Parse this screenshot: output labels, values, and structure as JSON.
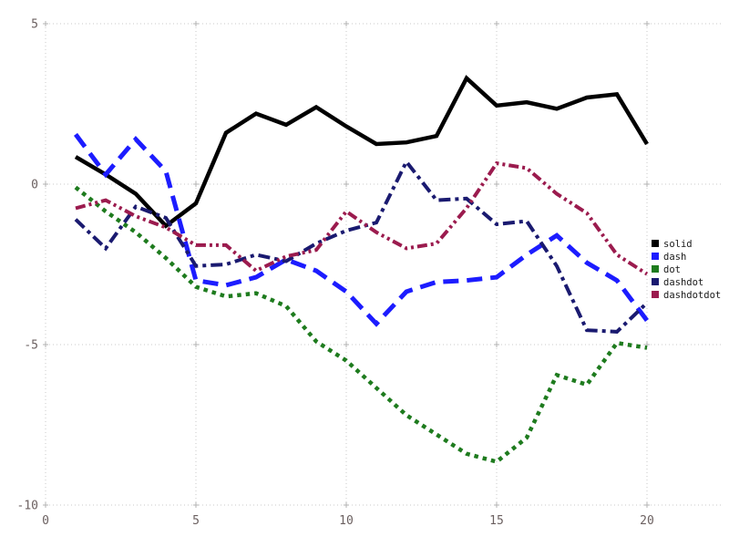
{
  "chart_data": {
    "type": "line",
    "title": "",
    "xlabel": "",
    "ylabel": "",
    "x": [
      1,
      2,
      3,
      4,
      5,
      6,
      7,
      8,
      9,
      10,
      11,
      12,
      13,
      14,
      15,
      16,
      17,
      18,
      19,
      20
    ],
    "series": [
      {
        "name": "solid",
        "color": "#000000",
        "style": "solid",
        "values": [
          0.85,
          0.3,
          -0.3,
          -1.3,
          -0.6,
          1.6,
          2.2,
          1.85,
          2.4,
          1.8,
          1.25,
          1.3,
          1.5,
          3.3,
          2.45,
          2.55,
          2.35,
          2.7,
          2.8,
          1.25
        ]
      },
      {
        "name": "dash",
        "color": "#1c1cff",
        "style": "dash",
        "values": [
          1.55,
          0.3,
          1.4,
          0.4,
          -3.0,
          -3.15,
          -2.9,
          -2.35,
          -2.7,
          -3.35,
          -4.35,
          -3.35,
          -3.05,
          -3.0,
          -2.9,
          -2.2,
          -1.6,
          -2.45,
          -3.0,
          -4.25
        ]
      },
      {
        "name": "dot",
        "color": "#1e7b1e",
        "style": "dot",
        "values": [
          -0.1,
          -0.85,
          -1.5,
          -2.3,
          -3.2,
          -3.5,
          -3.4,
          -3.8,
          -4.9,
          -5.5,
          -6.35,
          -7.2,
          -7.8,
          -8.4,
          -8.65,
          -7.9,
          -5.95,
          -6.25,
          -4.95,
          -5.1
        ]
      },
      {
        "name": "dashdot",
        "color": "#1a1a70",
        "style": "dashdot",
        "values": [
          -1.1,
          -2.0,
          -0.7,
          -1.05,
          -2.55,
          -2.5,
          -2.2,
          -2.4,
          -1.85,
          -1.45,
          -1.2,
          0.7,
          -0.5,
          -0.45,
          -1.25,
          -1.15,
          -2.55,
          -4.55,
          -4.6,
          -3.7
        ]
      },
      {
        "name": "dashdotdot",
        "color": "#9b1b4e",
        "style": "dashdotdot",
        "values": [
          -0.75,
          -0.5,
          -1.0,
          -1.35,
          -1.9,
          -1.9,
          -2.7,
          -2.25,
          -2.05,
          -0.85,
          -1.5,
          -2.0,
          -1.85,
          -0.75,
          0.65,
          0.5,
          -0.3,
          -0.9,
          -2.2,
          -2.8
        ]
      }
    ],
    "xticks": {
      "values": [
        0,
        5,
        10,
        15,
        20
      ],
      "labels": [
        "0",
        "5",
        "10",
        "15",
        "20"
      ]
    },
    "yticks": {
      "values": [
        -10,
        -5,
        0,
        5
      ],
      "labels": [
        "-10",
        "-5",
        "0",
        "5"
      ]
    },
    "xlim": [
      0,
      20.6
    ],
    "ylim": [
      -10.3,
      5.1
    ],
    "grid": "dotted",
    "legend_position": "right",
    "legend": [
      "solid",
      "dash",
      "dot",
      "dashdot",
      "dashdotdot"
    ],
    "colors": {
      "grid": "#c9c9c9",
      "tick_cross": "#b3b3b3",
      "tick_label": "#6b6060",
      "legend_text": "#1a1a1a",
      "background": "#ffffff"
    }
  }
}
